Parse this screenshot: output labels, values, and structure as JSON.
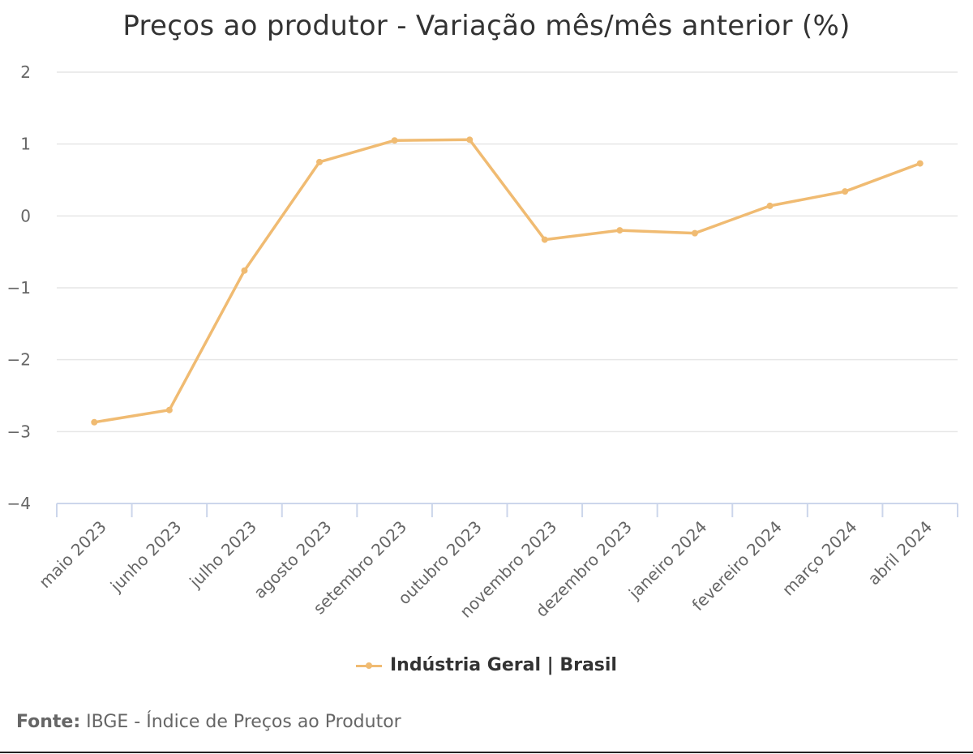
{
  "chart_data": {
    "type": "line",
    "title": "Preços ao produtor - Variação mês/mês anterior (%)",
    "xlabel": "",
    "ylabel": "",
    "categories": [
      "maio 2023",
      "junho 2023",
      "julho 2023",
      "agosto 2023",
      "setembro 2023",
      "outubro 2023",
      "novembro 2023",
      "dezembro 2023",
      "janeiro 2024",
      "fevereiro 2024",
      "março 2024",
      "abril 2024"
    ],
    "series": [
      {
        "name": "Indústria Geral | Brasil",
        "color": "#f0bb72",
        "values": [
          -2.87,
          -2.7,
          -0.76,
          0.75,
          1.05,
          1.06,
          -0.33,
          -0.2,
          -0.24,
          0.14,
          0.34,
          0.73
        ]
      }
    ],
    "ylim": [
      -4,
      2
    ],
    "yticks": [
      2,
      1,
      0,
      -1,
      -2,
      -3,
      -4
    ],
    "ytick_labels": [
      "2",
      "1",
      "0",
      "−1",
      "−2",
      "−3",
      "−4"
    ],
    "grid": true,
    "legend_placement": "bottom-center"
  },
  "source": {
    "label": "Fonte:",
    "text": " IBGE - Índice de Preços ao Produtor"
  }
}
